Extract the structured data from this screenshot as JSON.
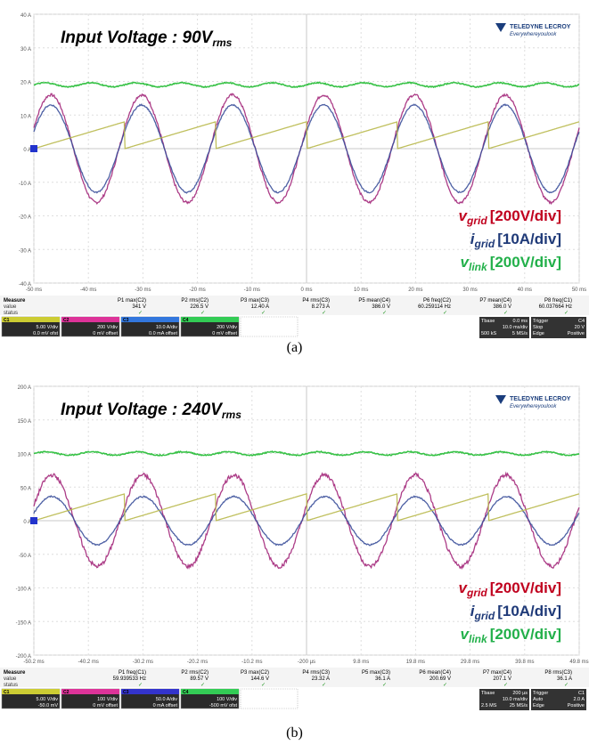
{
  "panels": [
    {
      "id": "a",
      "caption": "(a)",
      "title_prefix": "Input Voltage : 90V",
      "title_sub": "rms",
      "brand": "TELEDYNE LECROY",
      "tagline": "Everywhereyoulook",
      "chart_data": {
        "type": "line",
        "xlim": [
          -50,
          50
        ],
        "ylim": [
          -40,
          40
        ],
        "x_unit": "ms",
        "x_ticks": [
          "-50 ms",
          "-40 ms",
          "-30 ms",
          "-20 ms",
          "-10 ms",
          "0 ms",
          "10 ms",
          "20 ms",
          "30 ms",
          "40 ms",
          "50 ms"
        ],
        "y_ticks": [
          "40 A",
          "30 A",
          "20 A",
          "10 A",
          "0 A",
          "-10 A",
          "-20 A",
          "-30 A",
          "-40 A"
        ],
        "grid": true,
        "series": [
          {
            "name": "v_grid",
            "label_main": "v",
            "label_sub": "grid",
            "label_scale": "[200V/div]",
            "color": "#a3277a",
            "label_color": "#c0001e",
            "kind": "sine",
            "amplitude": 16,
            "offset": 0,
            "freq_hz": 60,
            "noise": 0.4
          },
          {
            "name": "i_grid",
            "label_main": "i",
            "label_sub": "grid",
            "label_scale": "[10A/div]",
            "color": "#3a4f9a",
            "label_color": "#1f3a78",
            "kind": "sine",
            "amplitude": 13,
            "offset": 0,
            "freq_hz": 60,
            "noise": 0.2
          },
          {
            "name": "v_link",
            "label_main": "v",
            "label_sub": "link",
            "label_scale": "[200V/div]",
            "color": "#22bb33",
            "label_color": "#22b04a",
            "kind": "ripple",
            "amplitude": 0.6,
            "offset": 19,
            "freq_hz": 120,
            "noise": 0.15
          },
          {
            "name": "ramp",
            "label_main": "",
            "label_sub": "",
            "label_scale": "",
            "color": "#b8b84a",
            "label_color": "#b8b84a",
            "kind": "sawtooth",
            "amplitude": 8,
            "offset": 0,
            "freq_hz": 60,
            "noise": 0
          }
        ]
      },
      "measure": {
        "header": [
          "Measure",
          "P1 max(C2)",
          "P2 rms(C2)",
          "P3 max(C3)",
          "P4 rms(C3)",
          "P5 mean(C4)",
          "P6 freq(C2)",
          "P7 mean(C4)",
          "P8 freq(C1)"
        ],
        "value_label": "value",
        "status_label": "status",
        "values": [
          "341 V",
          "226.5 V",
          "12.40 A",
          "8.273 A",
          "386.0 V",
          "60.259114 Hz",
          "386.0 V",
          "60.037664 Hz"
        ]
      },
      "channels": [
        {
          "id": "C1",
          "color": "#cccc33",
          "line1": "5.00 V/div",
          "line2": "0.0 mV ofst"
        },
        {
          "id": "C2",
          "color": "#dd3399",
          "line1": "200 V/div",
          "line2": "0 mV offset"
        },
        {
          "id": "C3",
          "color": "#3377dd",
          "line1": "10.0 A/div",
          "line2": "0.0 mA offset"
        },
        {
          "id": "C4",
          "color": "#33cc55",
          "line1": "200 V/div",
          "line2": "0 mV offset"
        }
      ],
      "timebase": {
        "label": "Tbase",
        "value": "0.0 ms",
        "div": "10.0 ms/div",
        "samples": "500 kS",
        "rate": "5 MS/s"
      },
      "trigger": {
        "label": "Trigger",
        "ch": "C4",
        "mode": "Stop",
        "edge": "Edge",
        "level": "20 V",
        "slope": "Positive"
      }
    },
    {
      "id": "b",
      "caption": "(b)",
      "title_prefix": "Input Voltage : 240V",
      "title_sub": "rms",
      "brand": "TELEDYNE LECROY",
      "tagline": "Everywhereyoulook",
      "chart_data": {
        "type": "line",
        "xlim": [
          -50.2,
          49.8
        ],
        "ylim": [
          -200,
          200
        ],
        "x_unit": "ms",
        "x_ticks": [
          "-50.2 ms",
          "-40.2 ms",
          "-30.2 ms",
          "-20.2 ms",
          "-10.2 ms",
          "-200 µs",
          "9.8 ms",
          "19.8 ms",
          "29.8 ms",
          "39.8 ms",
          "49.8 ms"
        ],
        "y_ticks": [
          "200 A",
          "150 A",
          "100 A",
          "50 A",
          "0 A",
          "-50 A",
          "-100 A",
          "-150 A",
          "-200 A"
        ],
        "grid": true,
        "series": [
          {
            "name": "v_grid",
            "label_main": "v",
            "label_sub": "grid",
            "label_scale": "[200V/div]",
            "color": "#a3277a",
            "label_color": "#c0001e",
            "kind": "sine",
            "amplitude": 68,
            "offset": 0,
            "freq_hz": 60,
            "noise": 3
          },
          {
            "name": "i_grid",
            "label_main": "i",
            "label_sub": "grid",
            "label_scale": "[10A/div]",
            "color": "#3a4f9a",
            "label_color": "#1f3a78",
            "kind": "sine",
            "amplitude": 36,
            "offset": 0,
            "freq_hz": 60,
            "noise": 1
          },
          {
            "name": "v_link",
            "label_main": "v",
            "label_sub": "link",
            "label_scale": "[200V/div]",
            "color": "#22bb33",
            "label_color": "#22b04a",
            "kind": "ripple",
            "amplitude": 2.5,
            "offset": 100,
            "freq_hz": 120,
            "noise": 0.8
          },
          {
            "name": "ramp",
            "label_main": "",
            "label_sub": "",
            "label_scale": "",
            "color": "#b8b84a",
            "label_color": "#b8b84a",
            "kind": "sawtooth",
            "amplitude": 40,
            "offset": 0,
            "freq_hz": 60,
            "noise": 0
          }
        ]
      },
      "measure": {
        "header": [
          "Measure",
          "P1 freq(C1)",
          "P2 rms(C2)",
          "P3 max(C2)",
          "P4 rms(C3)",
          "P5 max(C3)",
          "P6 mean(C4)",
          "P7 max(C4)",
          "P8 rms(C3)"
        ],
        "value_label": "value",
        "status_label": "status",
        "values": [
          "59.939533 Hz",
          "89.57 V",
          "144.6 V",
          "23.32 A",
          "36.1 A",
          "200.69 V",
          "207.1 V",
          "36.1 A"
        ]
      },
      "channels": [
        {
          "id": "C1",
          "color": "#cccc33",
          "line1": "5.00 V/div",
          "line2": "-50.0 mV"
        },
        {
          "id": "C2",
          "color": "#dd3399",
          "line1": "100 V/div",
          "line2": "0 mV offset"
        },
        {
          "id": "C3",
          "color": "#3333cc",
          "line1": "50.0 A/div",
          "line2": "0 mA offset"
        },
        {
          "id": "C4",
          "color": "#33cc55",
          "line1": "100 V/div",
          "line2": "-500 mV ofst"
        }
      ],
      "timebase": {
        "label": "Tbase",
        "value": "200 µs",
        "div": "10.0 ms/div",
        "samples": "2.5 MS",
        "rate": "25 MS/s"
      },
      "trigger": {
        "label": "Trigger",
        "ch": "C1",
        "mode": "Auto",
        "edge": "Edge",
        "level": "2.0 A",
        "slope": "Positive"
      }
    }
  ]
}
